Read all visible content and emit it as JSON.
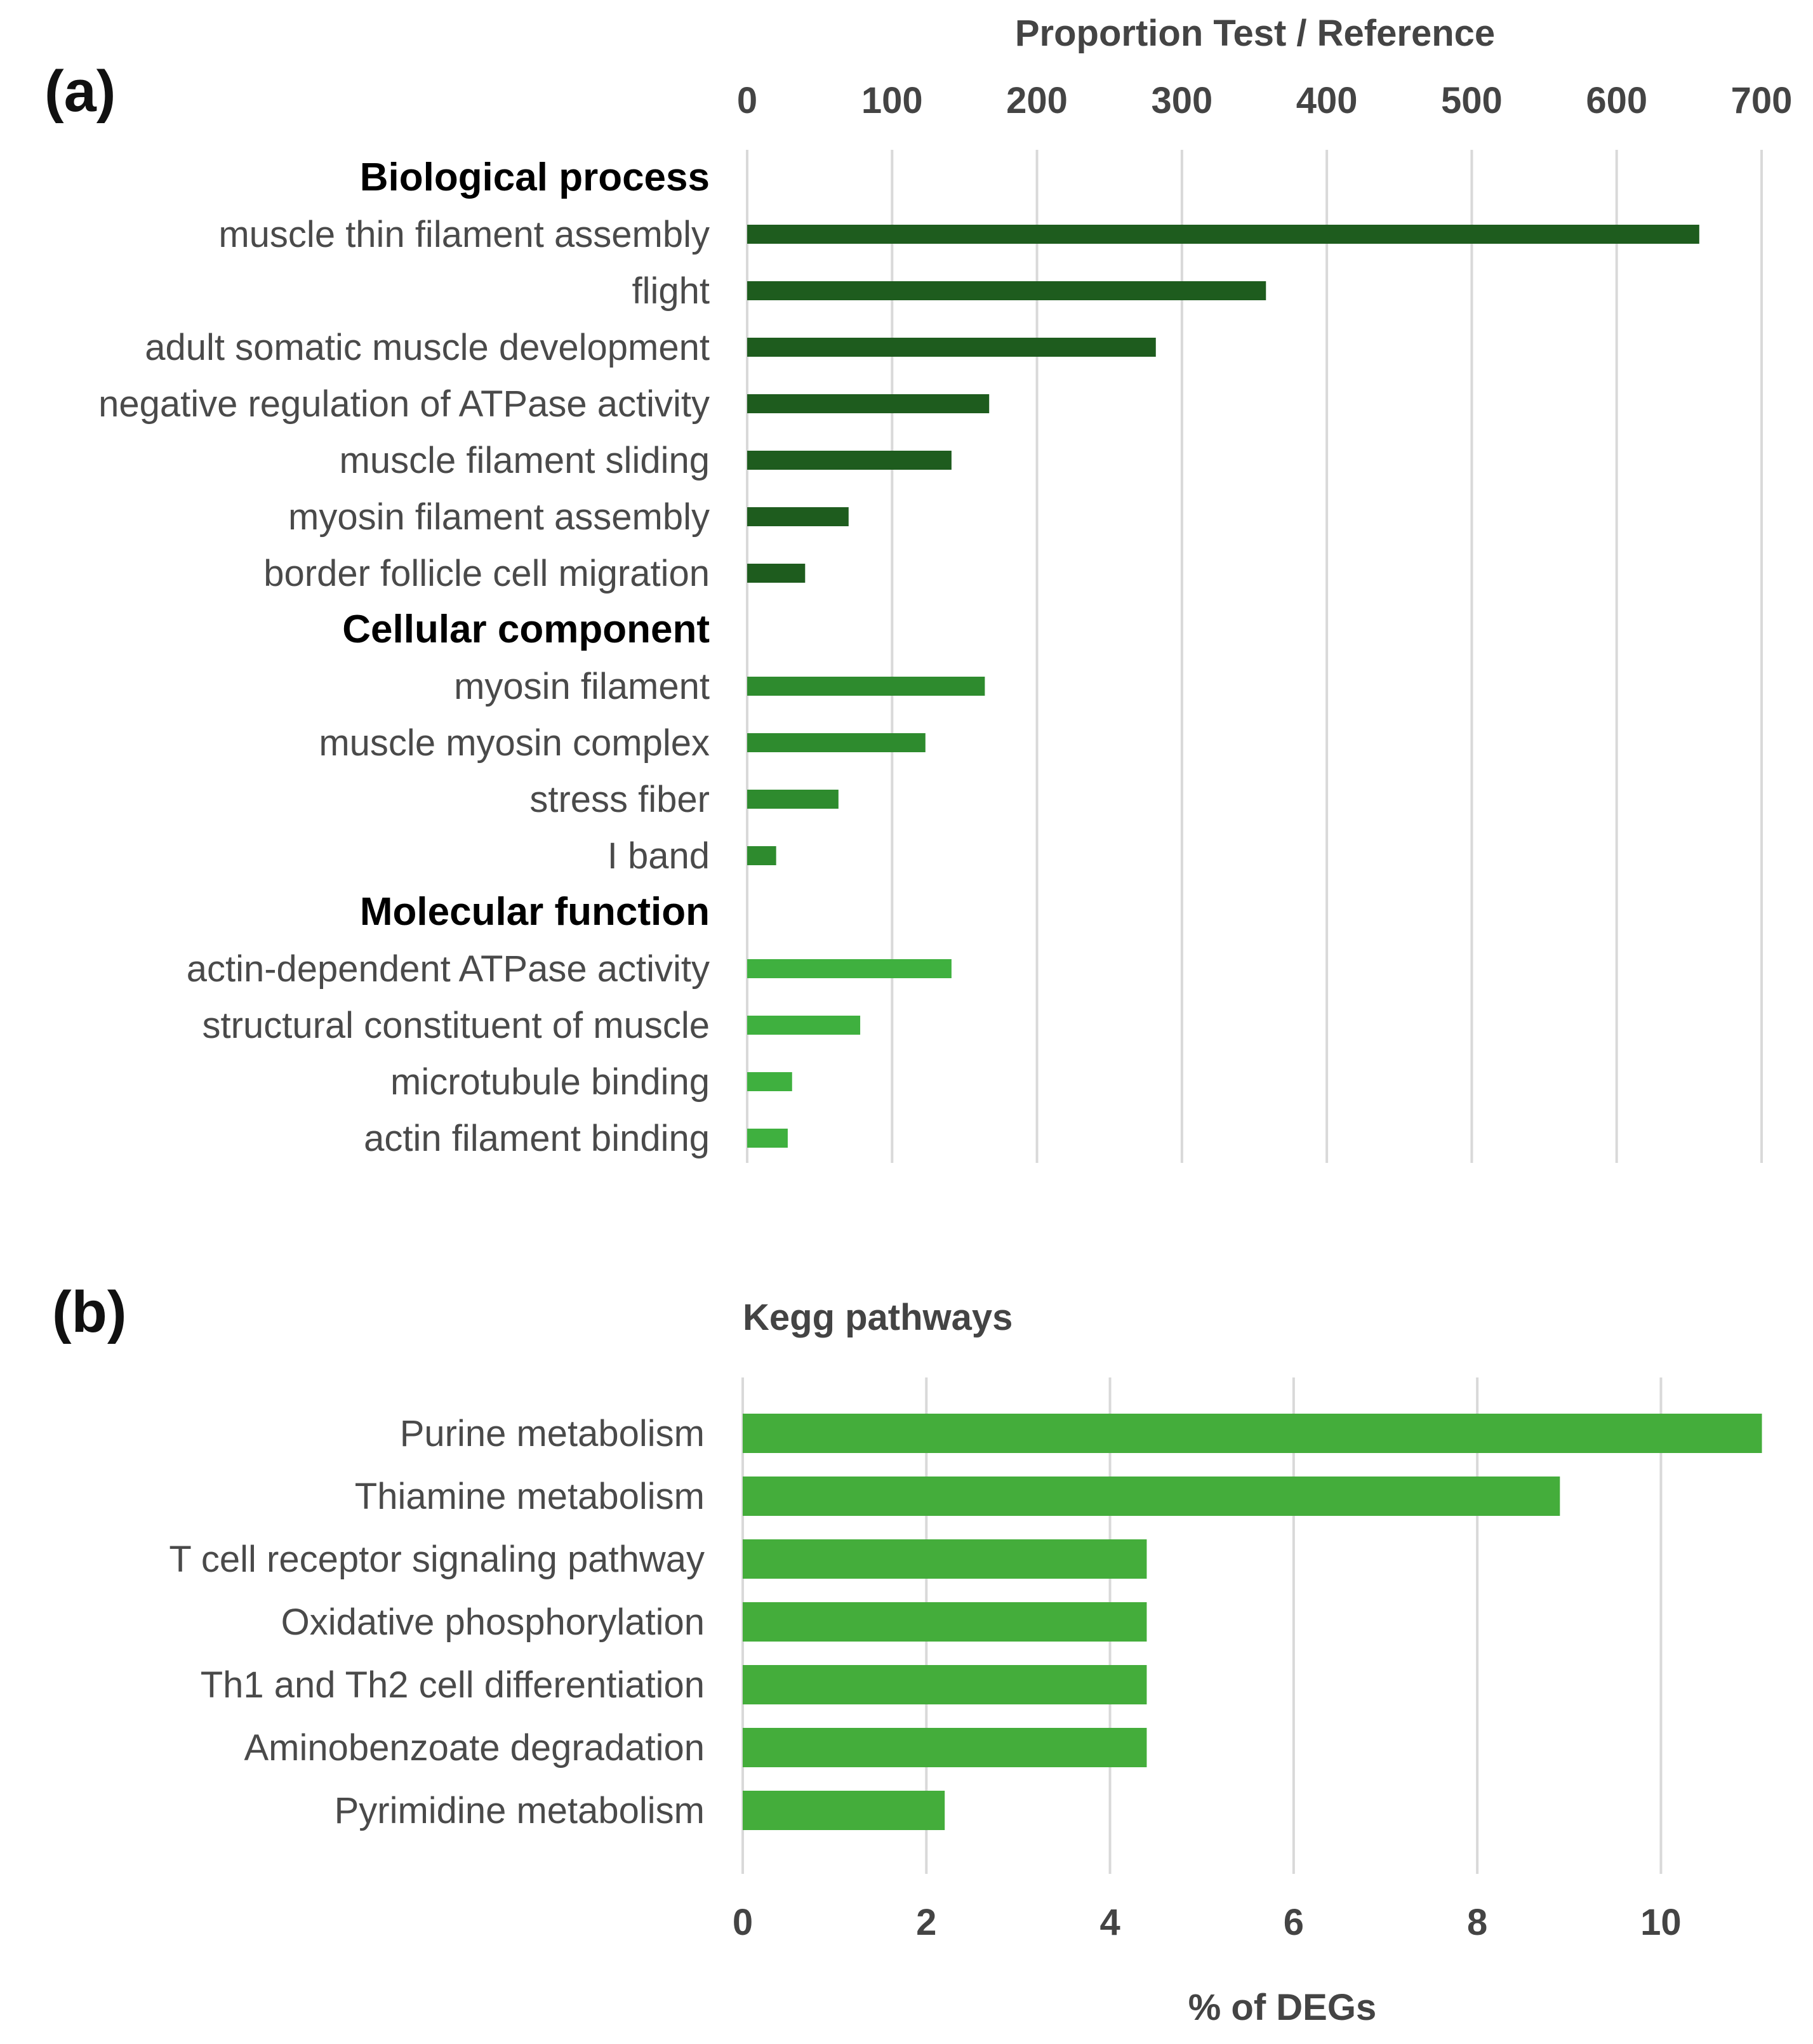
{
  "chart_data": [
    {
      "panel_label": "(a)",
      "type": "bar",
      "orientation": "horizontal",
      "axis_position": "top",
      "xlabel": "Proportion Test / Reference",
      "xlim": [
        0,
        700
      ],
      "xticks": [
        "0",
        "100",
        "200",
        "300",
        "400",
        "500",
        "600",
        "700"
      ],
      "grid": true,
      "groups": [
        {
          "name": "Biological process",
          "color": "#1e5c1e",
          "categories": [
            "muscle thin filament assembly",
            "flight",
            "adult somatic muscle development",
            "negative regulation of ATPase activity",
            "muscle filament sliding",
            "myosin filament assembly",
            "border follicle cell migration"
          ],
          "values": [
            657,
            358,
            282,
            167,
            141,
            70,
            40
          ]
        },
        {
          "name": "Cellular component",
          "color": "#2e8b2e",
          "categories": [
            "myosin filament",
            "muscle myosin complex",
            "stress fiber",
            "I band"
          ],
          "values": [
            164,
            123,
            63,
            20
          ]
        },
        {
          "name": "Molecular function",
          "color": "#3fb03f",
          "categories": [
            "actin-dependent ATPase activity",
            "structural constituent of muscle",
            "microtubule binding",
            "actin filament binding"
          ],
          "values": [
            141,
            78,
            31,
            28
          ]
        }
      ]
    },
    {
      "panel_label": "(b)",
      "type": "bar",
      "orientation": "horizontal",
      "title": "Kegg pathways",
      "xlabel": "% of DEGs",
      "xlim": [
        0,
        11.2
      ],
      "xticks": [
        "0",
        "2",
        "4",
        "6",
        "8",
        "10"
      ],
      "grid": true,
      "color": "#44ad3b",
      "categories": [
        "Purine metabolism",
        "Thiamine metabolism",
        "T cell receptor signaling pathway",
        "Oxidative phosphorylation",
        "Th1 and Th2 cell differentiation",
        "Aminobenzoate degradation",
        "Pyrimidine metabolism"
      ],
      "values": [
        11.1,
        8.9,
        4.4,
        4.4,
        4.4,
        4.4,
        2.2
      ]
    }
  ]
}
